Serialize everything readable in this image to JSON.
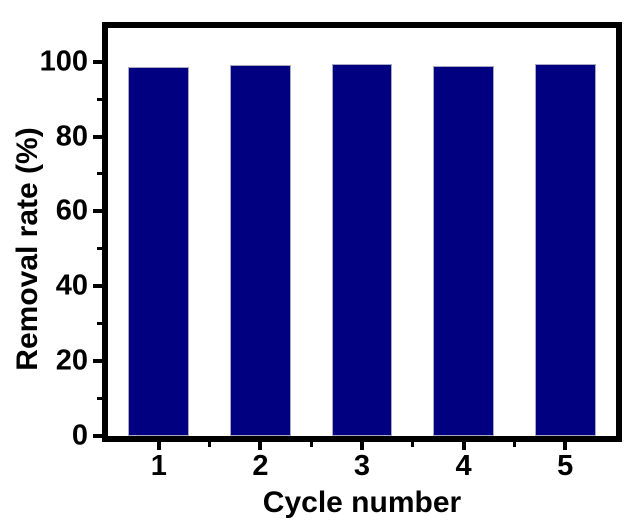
{
  "chart_data": {
    "type": "bar",
    "title": "",
    "categories": [
      "1",
      "2",
      "3",
      "4",
      "5"
    ],
    "values": [
      98.7,
      99.1,
      99.5,
      98.8,
      99.4
    ],
    "xlabel": "Cycle number",
    "ylabel": "Removal rate (%)",
    "ylim": [
      0,
      109
    ],
    "yticks": [
      0,
      20,
      40,
      60,
      80,
      100
    ],
    "yminorticks": [
      10,
      30,
      50,
      70,
      90
    ],
    "xminortick_positions": "midpoints-between-categories",
    "bar_width_fraction": 0.6,
    "legend": "none",
    "grid": false,
    "colors": {
      "bar_fill": "#000080",
      "bar_edge": "#a8a8c0",
      "axis": "#000000",
      "background": "#ffffff",
      "text": "#000000"
    }
  }
}
